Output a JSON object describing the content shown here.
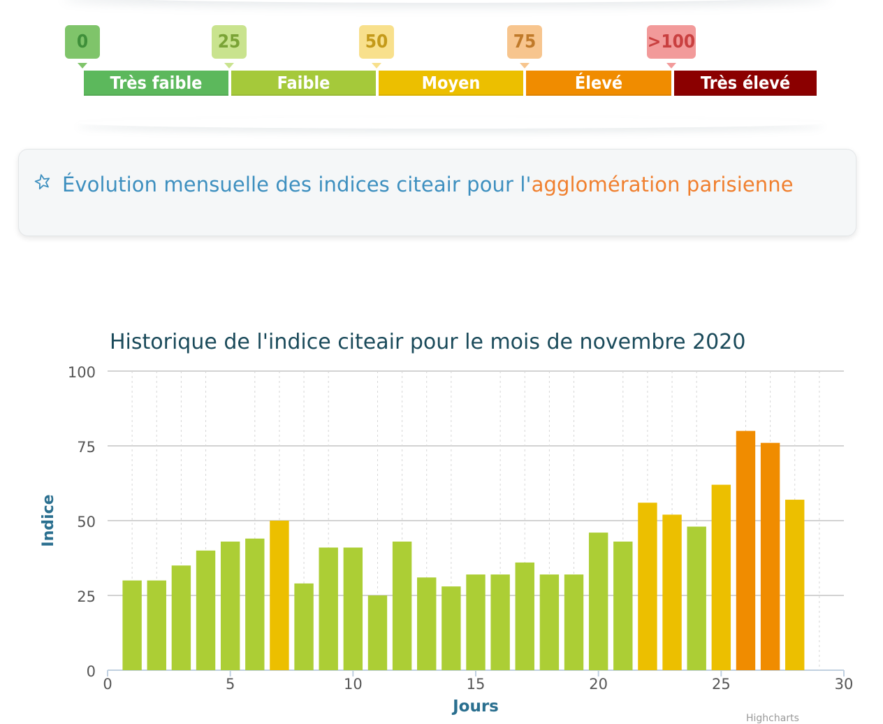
{
  "scale": {
    "markers": [
      {
        "label": "0",
        "bg": "#7fc46a",
        "fg": "#3f8f3a"
      },
      {
        "label": "25",
        "bg": "#c9e38e",
        "fg": "#7aa336"
      },
      {
        "label": "50",
        "bg": "#f8e08c",
        "fg": "#c49a1a"
      },
      {
        "label": "75",
        "bg": "#f7c58e",
        "fg": "#c07a2a"
      },
      {
        "label": ">100",
        "bg": "#f29a9a",
        "fg": "#c94040"
      }
    ],
    "bands": [
      {
        "label": "Très faible",
        "color": "#5cb85c"
      },
      {
        "label": "Faible",
        "color": "#a5c93a"
      },
      {
        "label": "Moyen",
        "color": "#ecbf00"
      },
      {
        "label": "Élevé",
        "color": "#f08c00"
      },
      {
        "label": "Très élevé",
        "color": "#8b0000"
      }
    ]
  },
  "section": {
    "title_prefix": "Évolution mensuelle des indices citeair pour l'",
    "title_highlight": "agglomération parisienne",
    "icon": "star-outline-icon"
  },
  "chart_data": {
    "type": "bar",
    "title": "Historique de l'indice citeair pour le mois de novembre 2020",
    "xlabel": "Jours",
    "ylabel": "Indice",
    "xlim": [
      0,
      30
    ],
    "ylim": [
      0,
      100
    ],
    "xticks": [
      0,
      5,
      10,
      15,
      20,
      25,
      30
    ],
    "yticks": [
      0,
      25,
      50,
      75,
      100
    ],
    "grid": true,
    "x": [
      1,
      2,
      3,
      4,
      5,
      6,
      7,
      8,
      9,
      10,
      11,
      12,
      13,
      14,
      15,
      16,
      17,
      18,
      19,
      20,
      21,
      22,
      23,
      24,
      25,
      26,
      27,
      28
    ],
    "values": [
      30,
      30,
      35,
      40,
      43,
      44,
      50,
      29,
      41,
      41,
      25,
      43,
      31,
      28,
      32,
      32,
      36,
      32,
      32,
      46,
      43,
      56,
      52,
      48,
      62,
      80,
      76,
      57
    ],
    "colors": {
      "low": "#acce35",
      "medium": "#ecbf00",
      "high": "#f08c00"
    }
  },
  "credits": "Highcharts"
}
